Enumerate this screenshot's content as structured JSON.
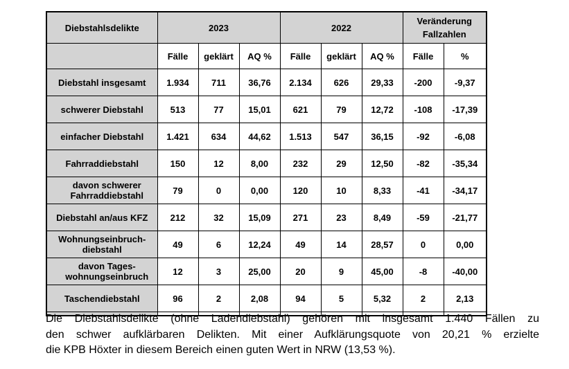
{
  "table": {
    "corner_label": "Diebstahlsdelikte",
    "group_headers": {
      "y2023": "2023",
      "y2022": "2022",
      "change": "Veränderung\nFallzahlen"
    },
    "subheaders": [
      "Fälle",
      "geklärt",
      "AQ %",
      "Fälle",
      "geklärt",
      "AQ %",
      "Fälle",
      "%"
    ],
    "rows": [
      {
        "label": "Diebstahl insgesamt",
        "values": [
          "1.934",
          "711",
          "36,76",
          "2.134",
          "626",
          "29,33",
          "-200",
          "-9,37"
        ]
      },
      {
        "label": "schwerer Diebstahl",
        "values": [
          "513",
          "77",
          "15,01",
          "621",
          "79",
          "12,72",
          "-108",
          "-17,39"
        ]
      },
      {
        "label": "einfacher Diebstahl",
        "values": [
          "1.421",
          "634",
          "44,62",
          "1.513",
          "547",
          "36,15",
          "-92",
          "-6,08"
        ]
      },
      {
        "label": "Fahrraddiebstahl",
        "values": [
          "150",
          "12",
          "8,00",
          "232",
          "29",
          "12,50",
          "-82",
          "-35,34"
        ]
      },
      {
        "label": "davon schwerer\nFahrraddiebstahl",
        "values": [
          "79",
          "0",
          "0,00",
          "120",
          "10",
          "8,33",
          "-41",
          "-34,17"
        ]
      },
      {
        "label": "Diebstahl an/aus KFZ",
        "values": [
          "212",
          "32",
          "15,09",
          "271",
          "23",
          "8,49",
          "-59",
          "-21,77"
        ]
      },
      {
        "label": "Wohnungseinbruch-\ndiebstahl",
        "values": [
          "49",
          "6",
          "12,24",
          "49",
          "14",
          "28,57",
          "0",
          "0,00"
        ]
      },
      {
        "label": "davon Tages-\nwohnungseinbruch",
        "values": [
          "12",
          "3",
          "25,00",
          "20",
          "9",
          "45,00",
          "-8",
          "-40,00"
        ]
      },
      {
        "label": "Taschendiebstahl",
        "values": [
          "96",
          "2",
          "2,08",
          "94",
          "5",
          "5,32",
          "2",
          "2,13"
        ]
      }
    ]
  },
  "paragraph": {
    "lines": [
      "Die Diebstahlsdelikte (ohne Ladendiebstahl) gehören mit insgesamt 1.440 Fällen zu",
      "den schwer aufklärbaren Delikten. Mit einer Aufklärungsquote von 20,21 % erzielte",
      "die KPB Höxter in diesem Bereich einen guten Wert in NRW (13,53 %)."
    ]
  },
  "colors": {
    "header_fill": "#d3d3d3",
    "border": "#000000",
    "text": "#000000"
  }
}
